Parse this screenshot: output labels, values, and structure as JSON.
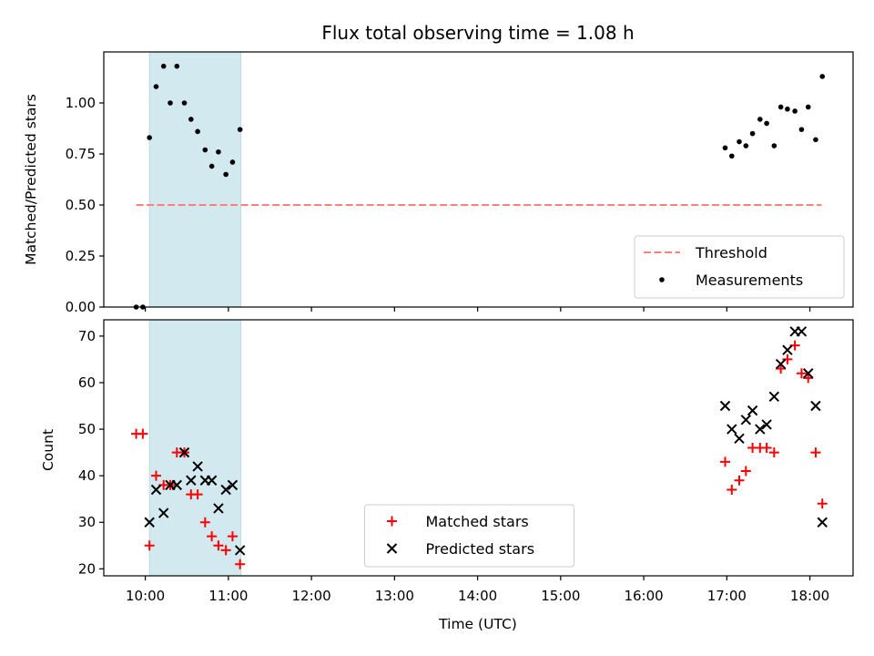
{
  "chart_data": {
    "title": "Flux total observing time = 1.08 h",
    "xlabel": "Time (UTC)",
    "x_ticks": [
      "10:00",
      "11:00",
      "12:00",
      "13:00",
      "14:00",
      "15:00",
      "16:00",
      "17:00",
      "18:00"
    ],
    "x_unit": "hours (UTC)",
    "xlim": [
      9.5,
      18.52
    ],
    "shaded_interval": {
      "from": 10.05,
      "to": 11.15,
      "color": "#d3e9f0"
    },
    "panels": [
      {
        "type": "scatter",
        "ylabel": "Matched/Predicted stars",
        "ylim": [
          0.0,
          1.25
        ],
        "y_ticks": [
          "0.00",
          "0.25",
          "0.50",
          "0.75",
          "1.00"
        ],
        "grid": false,
        "legend_position": "lower right",
        "threshold": {
          "name": "Threshold",
          "value": 0.5,
          "x_range": [
            9.89,
            18.14
          ],
          "color": "#ff7f7f",
          "style": "dashed"
        },
        "series": [
          {
            "name": "Measurements",
            "marker": "dot",
            "color": "#000000",
            "points": [
              [
                9.89,
                0.0
              ],
              [
                9.97,
                0.0
              ],
              [
                10.05,
                0.83
              ],
              [
                10.13,
                1.08
              ],
              [
                10.22,
                1.18
              ],
              [
                10.3,
                1.0
              ],
              [
                10.38,
                1.18
              ],
              [
                10.47,
                1.0
              ],
              [
                10.55,
                0.92
              ],
              [
                10.63,
                0.86
              ],
              [
                10.72,
                0.77
              ],
              [
                10.8,
                0.69
              ],
              [
                10.88,
                0.76
              ],
              [
                10.97,
                0.65
              ],
              [
                11.05,
                0.71
              ],
              [
                11.14,
                0.87
              ],
              [
                16.98,
                0.78
              ],
              [
                17.06,
                0.74
              ],
              [
                17.15,
                0.81
              ],
              [
                17.23,
                0.79
              ],
              [
                17.31,
                0.85
              ],
              [
                17.4,
                0.92
              ],
              [
                17.48,
                0.9
              ],
              [
                17.57,
                0.79
              ],
              [
                17.65,
                0.98
              ],
              [
                17.73,
                0.97
              ],
              [
                17.82,
                0.96
              ],
              [
                17.9,
                0.87
              ],
              [
                17.98,
                0.98
              ],
              [
                18.07,
                0.82
              ],
              [
                18.15,
                1.13
              ]
            ]
          }
        ]
      },
      {
        "type": "scatter",
        "ylabel": "Count",
        "ylim": [
          18.5,
          73.5
        ],
        "y_ticks": [
          "20",
          "30",
          "40",
          "50",
          "60",
          "70"
        ],
        "grid": false,
        "legend_position": "lower center",
        "series": [
          {
            "name": "Matched stars",
            "marker": "plus",
            "color": "#ff0000",
            "points": [
              [
                9.89,
                49
              ],
              [
                9.97,
                49
              ],
              [
                10.05,
                25
              ],
              [
                10.13,
                40
              ],
              [
                10.22,
                38
              ],
              [
                10.3,
                38
              ],
              [
                10.38,
                45
              ],
              [
                10.47,
                45
              ],
              [
                10.55,
                36
              ],
              [
                10.63,
                36
              ],
              [
                10.72,
                30
              ],
              [
                10.8,
                27
              ],
              [
                10.88,
                25
              ],
              [
                10.97,
                24
              ],
              [
                11.05,
                27
              ],
              [
                11.14,
                21
              ],
              [
                16.98,
                43
              ],
              [
                17.06,
                37
              ],
              [
                17.15,
                39
              ],
              [
                17.23,
                41
              ],
              [
                17.31,
                46
              ],
              [
                17.4,
                46
              ],
              [
                17.48,
                46
              ],
              [
                17.57,
                45
              ],
              [
                17.65,
                63
              ],
              [
                17.73,
                65
              ],
              [
                17.82,
                68
              ],
              [
                17.9,
                62
              ],
              [
                17.98,
                61
              ],
              [
                18.07,
                45
              ],
              [
                18.15,
                34
              ]
            ]
          },
          {
            "name": "Predicted stars",
            "marker": "x",
            "color": "#000000",
            "points": [
              [
                10.05,
                30
              ],
              [
                10.13,
                37
              ],
              [
                10.22,
                32
              ],
              [
                10.3,
                38
              ],
              [
                10.38,
                38
              ],
              [
                10.47,
                45
              ],
              [
                10.55,
                39
              ],
              [
                10.63,
                42
              ],
              [
                10.72,
                39
              ],
              [
                10.8,
                39
              ],
              [
                10.88,
                33
              ],
              [
                10.97,
                37
              ],
              [
                11.05,
                38
              ],
              [
                11.14,
                24
              ],
              [
                16.98,
                55
              ],
              [
                17.06,
                50
              ],
              [
                17.15,
                48
              ],
              [
                17.23,
                52
              ],
              [
                17.31,
                54
              ],
              [
                17.4,
                50
              ],
              [
                17.48,
                51
              ],
              [
                17.57,
                57
              ],
              [
                17.65,
                64
              ],
              [
                17.73,
                67
              ],
              [
                17.82,
                71
              ],
              [
                17.9,
                71
              ],
              [
                17.98,
                62
              ],
              [
                18.07,
                55
              ],
              [
                18.15,
                30
              ]
            ]
          }
        ]
      }
    ]
  }
}
